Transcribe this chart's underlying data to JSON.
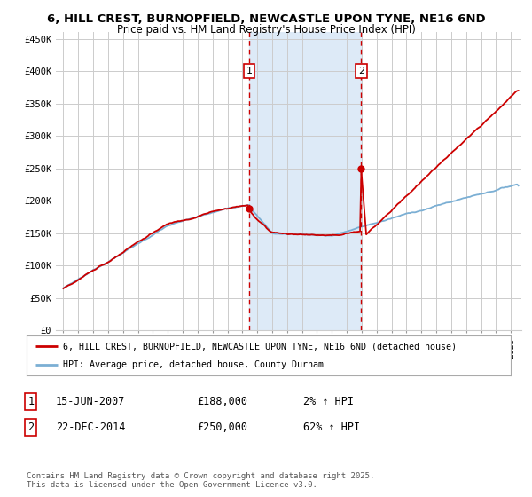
{
  "title": "6, HILL CREST, BURNOPFIELD, NEWCASTLE UPON TYNE, NE16 6ND",
  "subtitle": "Price paid vs. HM Land Registry's House Price Index (HPI)",
  "background_color": "#ffffff",
  "plot_bg_color": "#ffffff",
  "grid_color": "#cccccc",
  "hpi_line_color": "#7bafd4",
  "price_line_color": "#cc0000",
  "shade_color": "#ddeaf7",
  "vline_color": "#cc0000",
  "annotation_box_color": "#cc0000",
  "ylim": [
    0,
    460000
  ],
  "yticks": [
    0,
    50000,
    100000,
    150000,
    200000,
    250000,
    300000,
    350000,
    400000,
    450000
  ],
  "ytick_labels": [
    "£0",
    "£50K",
    "£100K",
    "£150K",
    "£200K",
    "£250K",
    "£300K",
    "£350K",
    "£400K",
    "£450K"
  ],
  "sale1_date_num": 2007.45,
  "sale1_price": 188000,
  "sale1_label": "1",
  "sale2_date_num": 2014.97,
  "sale2_price": 250000,
  "sale2_label": "2",
  "legend_line1": "6, HILL CREST, BURNOPFIELD, NEWCASTLE UPON TYNE, NE16 6ND (detached house)",
  "legend_line2": "HPI: Average price, detached house, County Durham",
  "table_row1": [
    "1",
    "15-JUN-2007",
    "£188,000",
    "2% ↑ HPI"
  ],
  "table_row2": [
    "2",
    "22-DEC-2014",
    "£250,000",
    "62% ↑ HPI"
  ],
  "footnote": "Contains HM Land Registry data © Crown copyright and database right 2025.\nThis data is licensed under the Open Government Licence v3.0.",
  "xmin": 1994.5,
  "xmax": 2025.7
}
